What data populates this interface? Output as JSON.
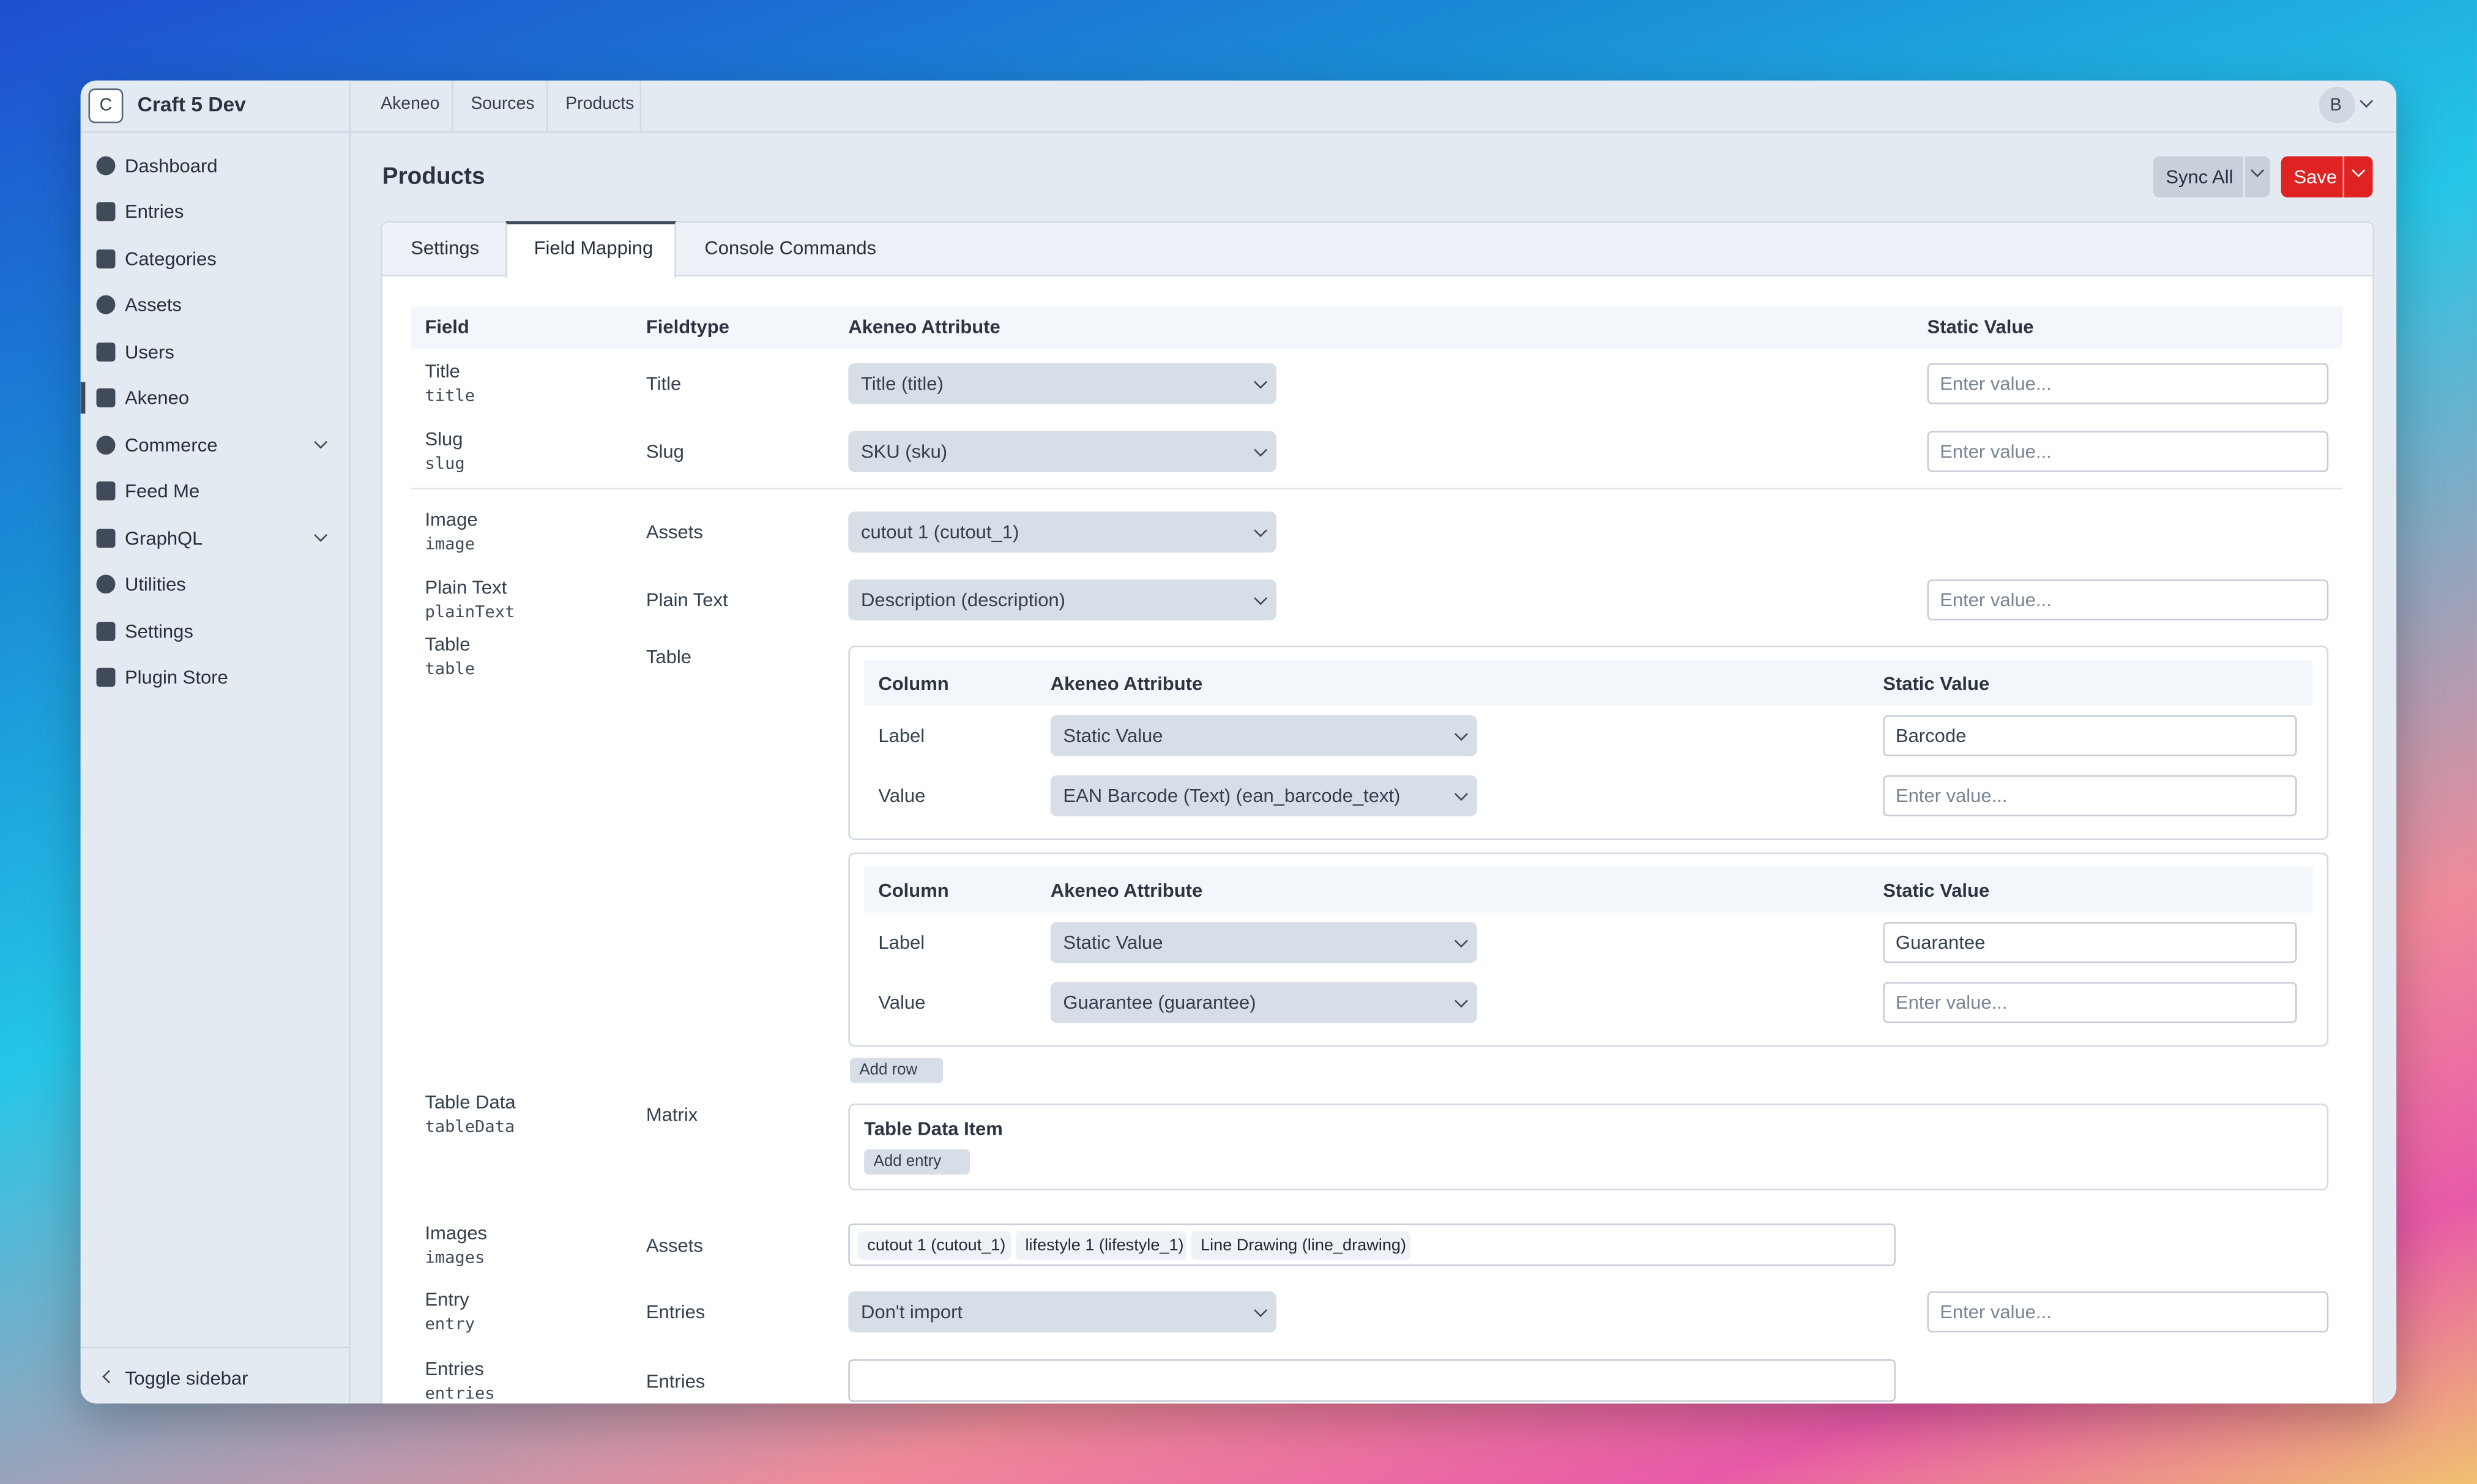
{
  "app": {
    "logo": "C",
    "name": "Craft 5 Dev"
  },
  "nav": [
    "Dashboard",
    "Entries",
    "Categories",
    "Assets",
    "Users",
    "Akeneo",
    "Commerce",
    "Feed Me",
    "GraphQL",
    "Utilities",
    "Settings",
    "Plugin Store"
  ],
  "toggle_sidebar": "Toggle sidebar",
  "breadcrumbs": [
    "Akeneo",
    "Sources",
    "Products"
  ],
  "user_initial": "B",
  "header": {
    "title": "Products",
    "sync_all": "Sync All",
    "save": "Save"
  },
  "tabs": [
    "Settings",
    "Field Mapping",
    "Console Commands"
  ],
  "table": {
    "headers": [
      "Field",
      "Fieldtype",
      "Akeneo Attribute",
      "Static Value"
    ],
    "placeholder": "Enter value...",
    "subtable_headers": [
      "Column",
      "Akeneo Attribute",
      "Static Value"
    ],
    "rows": [
      {
        "label": "Title",
        "handle": "title",
        "fieldtype": "Title",
        "attribute": "Title (title)"
      },
      {
        "label": "Slug",
        "handle": "slug",
        "fieldtype": "Slug",
        "attribute": "SKU (sku)"
      },
      {
        "label": "Image",
        "handle": "image",
        "fieldtype": "Assets",
        "attribute": "cutout 1 (cutout_1)"
      },
      {
        "label": "Plain Text",
        "handle": "plainText",
        "fieldtype": "Plain Text",
        "attribute": "Description (description)"
      },
      {
        "label": "Table",
        "handle": "table",
        "fieldtype": "Table",
        "blocks": [
          {
            "rows": [
              {
                "column": "Label",
                "attribute": "Static Value",
                "static": "Barcode"
              },
              {
                "column": "Value",
                "attribute": "EAN Barcode (Text) (ean_barcode_text)"
              }
            ]
          },
          {
            "rows": [
              {
                "column": "Label",
                "attribute": "Static Value",
                "static": "Guarantee"
              },
              {
                "column": "Value",
                "attribute": "Guarantee (guarantee)"
              }
            ]
          }
        ],
        "add_row": "Add row"
      },
      {
        "label": "Table Data",
        "handle": "tableData",
        "fieldtype": "Matrix",
        "item_title": "Table Data Item",
        "add_entry": "Add entry"
      },
      {
        "label": "Images",
        "handle": "images",
        "fieldtype": "Assets",
        "tags": [
          "cutout 1 (cutout_1)",
          "lifestyle 1 (lifestyle_1)",
          "Line Drawing (line_drawing)"
        ]
      },
      {
        "label": "Entry",
        "handle": "entry",
        "fieldtype": "Entries",
        "attribute": "Don't import"
      },
      {
        "label": "Entries",
        "handle": "entries",
        "fieldtype": "Entries"
      }
    ]
  }
}
